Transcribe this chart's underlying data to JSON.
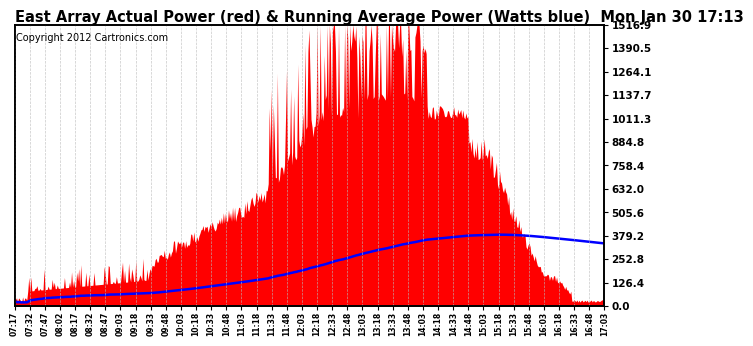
{
  "title": "East Array Actual Power (red) & Running Average Power (Watts blue)  Mon Jan 30 17:13",
  "copyright": "Copyright 2012 Cartronics.com",
  "yticks": [
    0.0,
    126.4,
    252.8,
    379.2,
    505.6,
    632.0,
    758.4,
    884.8,
    1011.3,
    1137.7,
    1264.1,
    1390.5,
    1516.9
  ],
  "ymax": 1516.9,
  "xtick_labels": [
    "07:17",
    "07:32",
    "07:47",
    "08:02",
    "08:17",
    "08:32",
    "08:47",
    "09:03",
    "09:18",
    "09:33",
    "09:48",
    "10:03",
    "10:18",
    "10:33",
    "10:48",
    "11:03",
    "11:18",
    "11:33",
    "11:48",
    "12:03",
    "12:18",
    "12:33",
    "12:48",
    "13:03",
    "13:18",
    "13:33",
    "13:48",
    "14:03",
    "14:18",
    "14:33",
    "14:48",
    "15:03",
    "15:18",
    "15:33",
    "15:48",
    "16:03",
    "16:18",
    "16:33",
    "16:48",
    "17:03"
  ],
  "bar_color": "#FF0000",
  "line_color": "#0000FF",
  "bg_color": "#FFFFFF",
  "grid_color": "#BBBBBB",
  "title_fontsize": 10.5,
  "copyright_fontsize": 7,
  "tick_fontsize": 7.5,
  "xtick_fontsize": 5.5
}
